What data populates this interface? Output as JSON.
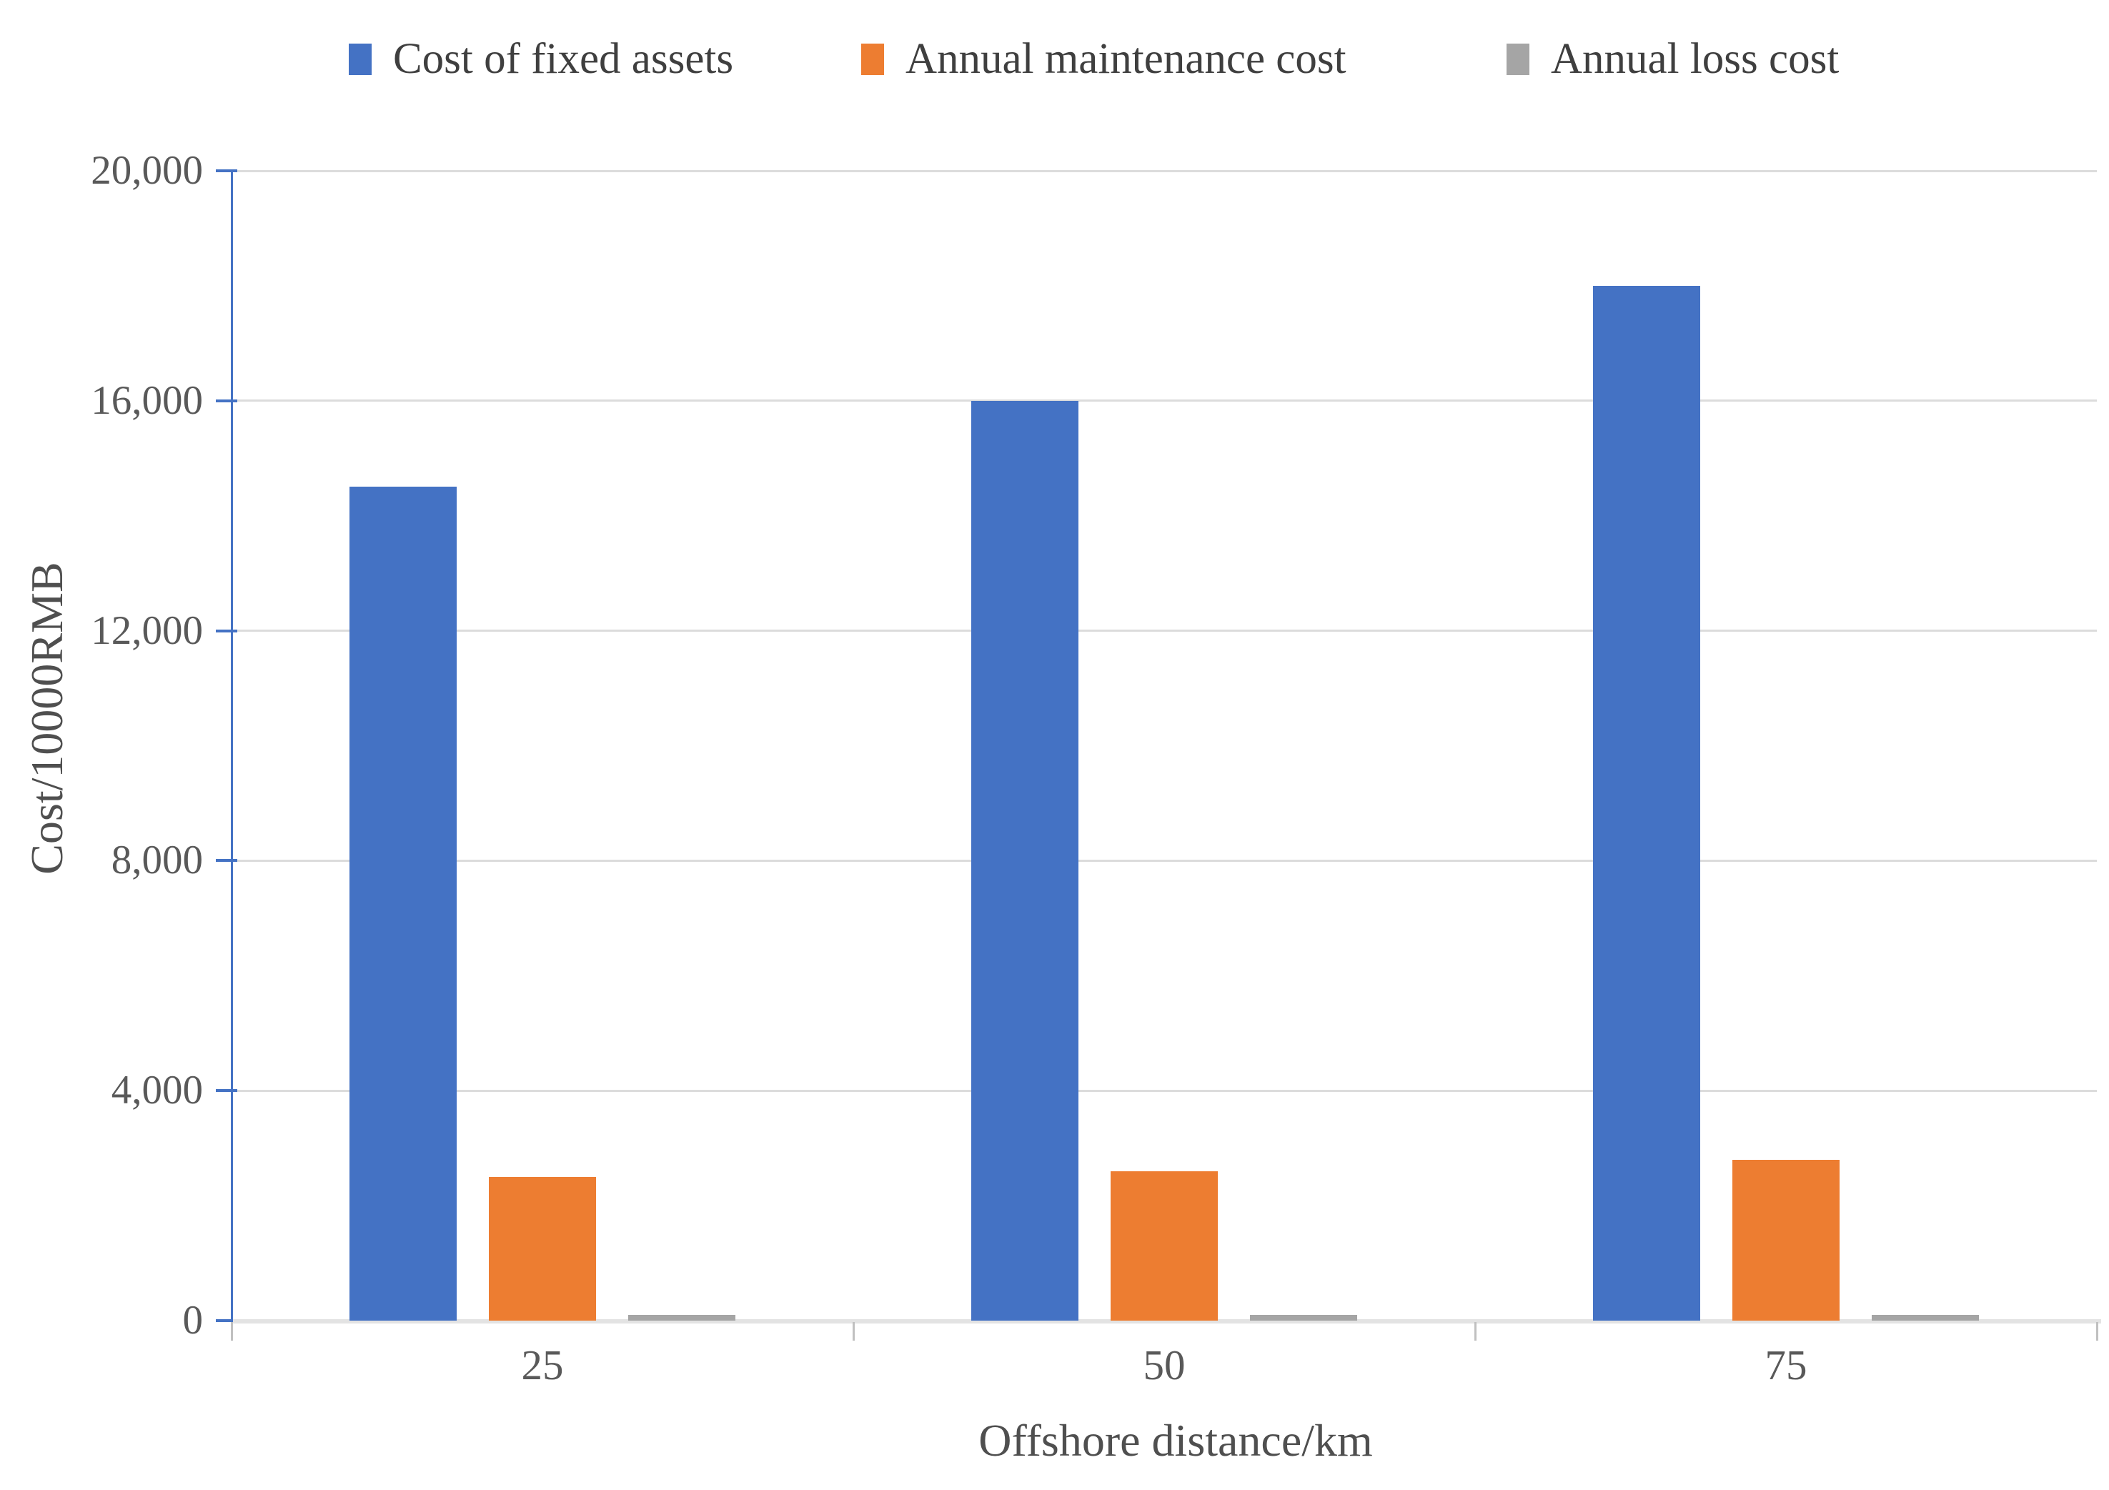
{
  "chart_data": {
    "type": "bar",
    "title": "",
    "categories": [
      "25",
      "50",
      "75"
    ],
    "series": [
      {
        "name": "Cost of fixed assets",
        "color": "#4472c4",
        "values": [
          14500,
          16000,
          18000
        ]
      },
      {
        "name": "Annual maintenance cost",
        "color": "#ed7d31",
        "values": [
          2500,
          2600,
          2800
        ]
      },
      {
        "name": "Annual loss cost",
        "color": "#a5a5a5",
        "values": [
          100,
          100,
          100
        ]
      }
    ],
    "xlabel": "Offshore distance/km",
    "ylabel": "Cost/10000RMB",
    "ylim": [
      0,
      20000
    ],
    "ytick_step": 4000,
    "ytick_labels": [
      "0",
      "4,000",
      "8,000",
      "12,000",
      "16,000",
      "20,000"
    ],
    "grid": true,
    "legend_position": "top"
  },
  "colors": {
    "axis_line": "#4472c4",
    "gridline": "#dcdcdc",
    "tick_label": "#595959",
    "category_tick": "#c0c0c0"
  }
}
